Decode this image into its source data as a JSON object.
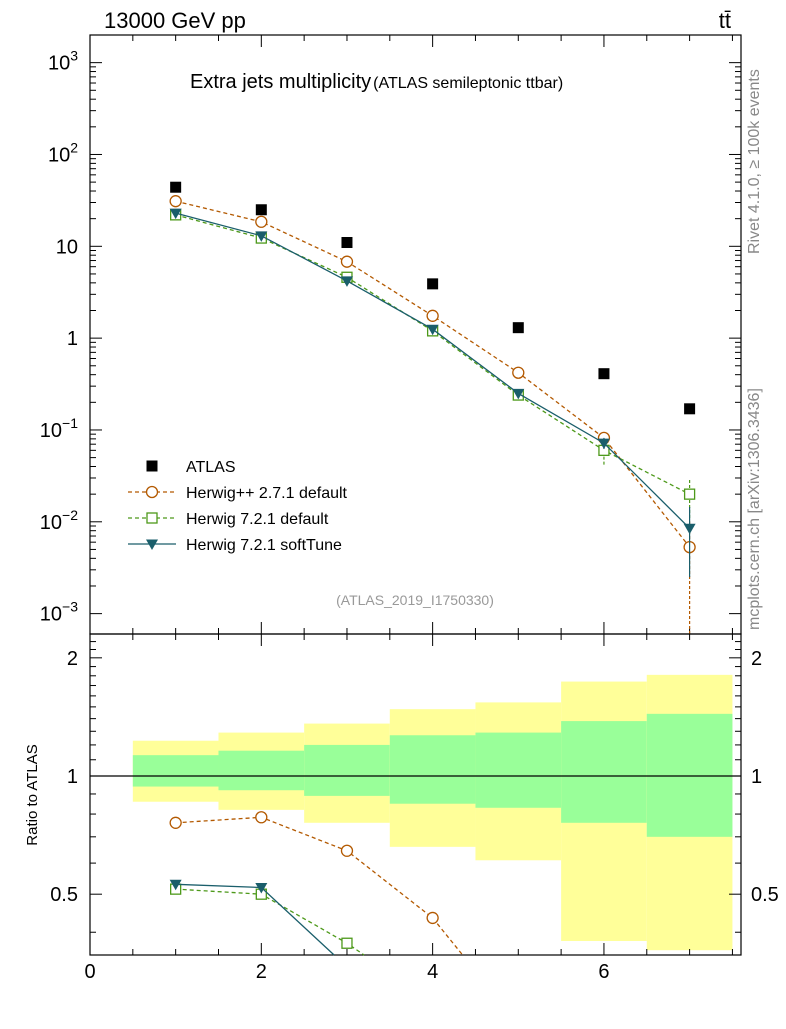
{
  "header": {
    "energy_label": "13000 GeV pp",
    "process_label": "tt̄"
  },
  "side_labels": {
    "rivet": "Rivet 4.1.0, ≥ 100k events",
    "mcplots": "mcplots.cern.ch [arXiv:1306.3436]"
  },
  "chart_data": [
    {
      "type": "scatter",
      "panel": "main",
      "title": "Extra jets multiplicity",
      "subtitle": "(ATLAS semileptonic ttbar)",
      "analysis_id": "(ATLAS_2019_I1750330)",
      "yscale": "log",
      "ylim": [
        0.0006,
        2000
      ],
      "xlim": [
        0,
        7.6
      ],
      "y_ticks": [
        {
          "value": 1000,
          "base": "10",
          "exp": "3"
        },
        {
          "value": 100,
          "base": "10",
          "exp": "2"
        },
        {
          "value": 10,
          "base": "10",
          "exp": ""
        },
        {
          "value": 1,
          "base": "1",
          "exp": ""
        },
        {
          "value": 0.1,
          "base": "10",
          "exp": "−1"
        },
        {
          "value": 0.01,
          "base": "10",
          "exp": "−2"
        },
        {
          "value": 0.001,
          "base": "10",
          "exp": "−3"
        }
      ],
      "legend_position": "bottom-left",
      "series": [
        {
          "name": "ATLAS",
          "color": "#000000",
          "marker": "square-filled",
          "line": "none",
          "x": [
            1,
            2,
            3,
            4,
            5,
            6,
            7
          ],
          "y": [
            44,
            25,
            11,
            3.9,
            1.3,
            0.41,
            0.17
          ]
        },
        {
          "name": "Herwig++ 2.7.1 default",
          "color": "#b35900",
          "marker": "circle-open",
          "line": "dashed",
          "x": [
            1,
            2,
            3,
            4,
            5,
            6,
            7
          ],
          "y": [
            31,
            18.5,
            6.8,
            1.75,
            0.42,
            0.082,
            0.0053
          ],
          "err": [
            0,
            0,
            0,
            0,
            0,
            0.012,
            0.0048
          ]
        },
        {
          "name": "Herwig 7.2.1 default",
          "color": "#4d991a",
          "marker": "square-open",
          "line": "dashed",
          "x": [
            1,
            2,
            3,
            4,
            5,
            6,
            7
          ],
          "y": [
            22,
            12.3,
            4.6,
            1.2,
            0.24,
            0.06,
            0.02
          ],
          "err": [
            0,
            0,
            0,
            0,
            0,
            0.018,
            0.009
          ]
        },
        {
          "name": "Herwig 7.2.1 softTune",
          "color": "#1a5e6b",
          "marker": "triangle-down-filled",
          "line": "solid",
          "x": [
            1,
            2,
            3,
            4,
            5,
            6,
            7
          ],
          "y": [
            23,
            13,
            4.2,
            1.25,
            0.25,
            0.072,
            0.0085
          ],
          "err": [
            0,
            0,
            0,
            0,
            0,
            0.01,
            0.006
          ]
        }
      ]
    },
    {
      "type": "line",
      "panel": "ratio",
      "ylabel": "Ratio to ATLAS",
      "ylim": [
        0.35,
        2.3
      ],
      "xlim": [
        0,
        7.6
      ],
      "x_ticks": [
        "0",
        "2",
        "4",
        "6"
      ],
      "y_ticks": [
        "0.5",
        "1",
        "2"
      ],
      "bands": {
        "bins": [
          [
            0.5,
            1.5
          ],
          [
            1.5,
            2.5
          ],
          [
            2.5,
            3.5
          ],
          [
            3.5,
            4.5
          ],
          [
            4.5,
            5.5
          ],
          [
            5.5,
            6.5
          ],
          [
            6.5,
            7.5
          ]
        ],
        "outer_lo": [
          0.86,
          0.82,
          0.76,
          0.66,
          0.61,
          0.38,
          0.36
        ],
        "outer_hi": [
          1.23,
          1.29,
          1.36,
          1.48,
          1.54,
          1.74,
          1.81
        ],
        "inner_lo": [
          0.94,
          0.92,
          0.89,
          0.85,
          0.83,
          0.76,
          0.7
        ],
        "inner_hi": [
          1.13,
          1.16,
          1.2,
          1.27,
          1.29,
          1.38,
          1.44
        ],
        "outer_color": "#ffff99",
        "inner_color": "#99ff99"
      },
      "reference_line": 1,
      "series": [
        {
          "name": "Herwig++ 2.7.1 default",
          "color": "#b35900",
          "marker": "circle-open",
          "line": "dashed",
          "x": [
            1,
            2,
            3,
            4,
            4.35
          ],
          "y": [
            0.76,
            0.785,
            0.645,
            0.435,
            0.35
          ],
          "markers_on": [
            1,
            1,
            1,
            1,
            0
          ]
        },
        {
          "name": "Herwig 7.2.1 default",
          "color": "#4d991a",
          "marker": "square-open",
          "line": "dashed",
          "x": [
            1,
            2,
            3,
            3.2
          ],
          "y": [
            0.515,
            0.5,
            0.375,
            0.35
          ],
          "markers_on": [
            1,
            1,
            1,
            0
          ]
        },
        {
          "name": "Herwig 7.2.1 softTune",
          "color": "#1a5e6b",
          "marker": "triangle-down-filled",
          "line": "solid",
          "x": [
            1,
            2,
            2.85
          ],
          "y": [
            0.53,
            0.52,
            0.35
          ],
          "markers_on": [
            1,
            1,
            0
          ]
        }
      ]
    }
  ]
}
